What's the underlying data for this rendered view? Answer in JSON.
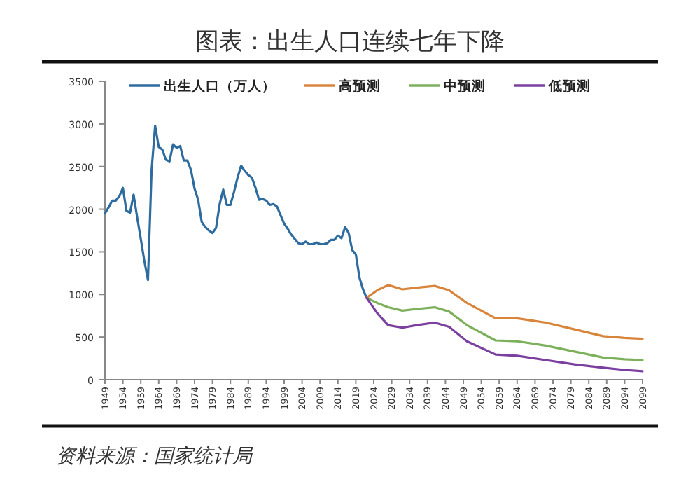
{
  "chart_data": {
    "type": "line",
    "title": "图表：出生人口连续七年下降",
    "annotations": [
      "资料来源：国家统计局"
    ],
    "legend": "top",
    "grid": false,
    "xlim": [
      1949,
      2099
    ],
    "ylim": [
      0,
      3500
    ],
    "xticks": [
      1949,
      1954,
      1959,
      1964,
      1969,
      1974,
      1979,
      1984,
      1989,
      1994,
      1999,
      2004,
      2009,
      2014,
      2019,
      2024,
      2029,
      2034,
      2039,
      2044,
      2049,
      2054,
      2059,
      2064,
      2069,
      2074,
      2079,
      2084,
      2089,
      2094,
      2099
    ],
    "yticks": [
      0,
      500,
      1000,
      1500,
      2000,
      2500,
      3000,
      3500
    ],
    "series": [
      {
        "name": "出生人口（万人）",
        "color": "#2e6b9e",
        "x": [
          1949,
          1950,
          1951,
          1952,
          1953,
          1954,
          1955,
          1956,
          1957,
          1958,
          1959,
          1960,
          1961,
          1962,
          1963,
          1964,
          1965,
          1966,
          1967,
          1968,
          1969,
          1970,
          1971,
          1972,
          1973,
          1974,
          1975,
          1976,
          1977,
          1978,
          1979,
          1980,
          1981,
          1982,
          1983,
          1984,
          1985,
          1986,
          1987,
          1988,
          1989,
          1990,
          1991,
          1992,
          1993,
          1994,
          1995,
          1996,
          1997,
          1998,
          1999,
          2000,
          2001,
          2002,
          2003,
          2004,
          2005,
          2006,
          2007,
          2008,
          2009,
          2010,
          2011,
          2012,
          2013,
          2014,
          2015,
          2016,
          2017,
          2018,
          2019,
          2020,
          2021,
          2022
        ],
        "values": [
          1950,
          2020,
          2100,
          2100,
          2150,
          2250,
          1980,
          1960,
          2170,
          1900,
          1650,
          1390,
          1170,
          2450,
          2980,
          2730,
          2700,
          2580,
          2560,
          2760,
          2720,
          2740,
          2570,
          2570,
          2460,
          2240,
          2110,
          1850,
          1790,
          1750,
          1720,
          1780,
          2060,
          2230,
          2050,
          2050,
          2200,
          2370,
          2510,
          2450,
          2400,
          2370,
          2250,
          2110,
          2120,
          2100,
          2050,
          2060,
          2030,
          1930,
          1830,
          1770,
          1700,
          1650,
          1600,
          1590,
          1620,
          1590,
          1590,
          1610,
          1590,
          1590,
          1600,
          1640,
          1640,
          1690,
          1660,
          1790,
          1720,
          1520,
          1470,
          1200,
          1060,
          960
        ]
      },
      {
        "name": "高预测",
        "color": "#d9843b",
        "x": [
          2022,
          2025,
          2028,
          2032,
          2036,
          2041,
          2045,
          2050,
          2058,
          2064,
          2072,
          2080,
          2088,
          2094,
          2099
        ],
        "values": [
          960,
          1050,
          1110,
          1060,
          1080,
          1100,
          1050,
          900,
          720,
          720,
          670,
          590,
          510,
          490,
          480
        ]
      },
      {
        "name": "中预测",
        "color": "#7db05b",
        "x": [
          2022,
          2025,
          2028,
          2032,
          2036,
          2041,
          2045,
          2050,
          2058,
          2064,
          2072,
          2080,
          2088,
          2094,
          2099
        ],
        "values": [
          960,
          900,
          850,
          810,
          830,
          850,
          800,
          640,
          460,
          450,
          400,
          330,
          260,
          240,
          230
        ]
      },
      {
        "name": "低预测",
        "color": "#7b3fa0",
        "x": [
          2022,
          2025,
          2028,
          2032,
          2036,
          2041,
          2045,
          2050,
          2058,
          2064,
          2072,
          2080,
          2088,
          2094,
          2099
        ],
        "values": [
          960,
          780,
          640,
          610,
          640,
          670,
          620,
          450,
          295,
          280,
          230,
          180,
          140,
          115,
          100
        ]
      }
    ]
  }
}
